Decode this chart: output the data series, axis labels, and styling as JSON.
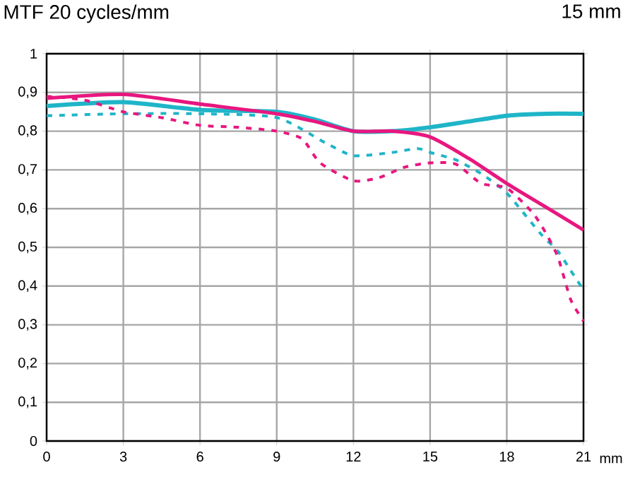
{
  "chart_data": {
    "type": "line",
    "title": "MTF 20 cycles/mm",
    "xlabel": "mm",
    "annotations": [
      "15 mm"
    ],
    "xlim": [
      0,
      21
    ],
    "xticks": [
      0,
      3,
      6,
      9,
      12,
      15,
      18,
      21
    ],
    "ylim": [
      0,
      1
    ],
    "yticks": [
      0,
      {
        "value": 0.1,
        "label": "0,1"
      },
      {
        "value": 0.2,
        "label": "0,2"
      },
      {
        "value": 0.3,
        "label": "0,3"
      },
      {
        "value": 0.4,
        "label": "0,4"
      },
      {
        "value": 0.5,
        "label": "0,5"
      },
      {
        "value": 0.6,
        "label": "0,6"
      },
      {
        "value": 0.7,
        "label": "0,7"
      },
      {
        "value": 0.8,
        "label": "0,8"
      },
      {
        "value": 0.9,
        "label": "0,9"
      },
      1
    ],
    "grid": true,
    "marker": "none",
    "series": [
      {
        "color": "#1fb5c8",
        "line_style": "solid",
        "x": [
          0,
          3,
          6,
          9,
          10.5,
          12,
          13.5,
          15,
          16.5,
          18,
          19.5,
          21
        ],
        "values": [
          0.865,
          0.875,
          0.855,
          0.85,
          0.83,
          0.8,
          0.8,
          0.81,
          0.825,
          0.84,
          0.845,
          0.845
        ]
      },
      {
        "color": "#e8177f",
        "line_style": "solid",
        "x": [
          0,
          3,
          6,
          9,
          10.5,
          12,
          13.5,
          15,
          16.5,
          18,
          19.5,
          21
        ],
        "values": [
          0.885,
          0.895,
          0.87,
          0.845,
          0.825,
          0.8,
          0.8,
          0.785,
          0.73,
          0.665,
          0.605,
          0.545
        ]
      },
      {
        "color": "#1fb5c8",
        "line_style": "dashed",
        "x": [
          0,
          3,
          6,
          9,
          10.9,
          12,
          13.5,
          14.5,
          15,
          16,
          17,
          18,
          19.3,
          20,
          20.5,
          21
        ],
        "values": [
          0.84,
          0.845,
          0.845,
          0.835,
          0.77,
          0.737,
          0.745,
          0.755,
          0.745,
          0.726,
          0.69,
          0.64,
          0.537,
          0.49,
          0.44,
          0.39
        ]
      },
      {
        "color": "#e8177f",
        "line_style": "dashed",
        "x": [
          0,
          1.5,
          3,
          4.5,
          6,
          7.5,
          9,
          10,
          10.7,
          12,
          13,
          14,
          15,
          16,
          17,
          18,
          19,
          19.5,
          20,
          20.5,
          21
        ],
        "values": [
          0.89,
          0.88,
          0.85,
          0.835,
          0.815,
          0.81,
          0.8,
          0.78,
          0.718,
          0.672,
          0.68,
          0.707,
          0.718,
          0.715,
          0.665,
          0.653,
          0.59,
          0.54,
          0.475,
          0.365,
          0.31
        ]
      }
    ]
  }
}
